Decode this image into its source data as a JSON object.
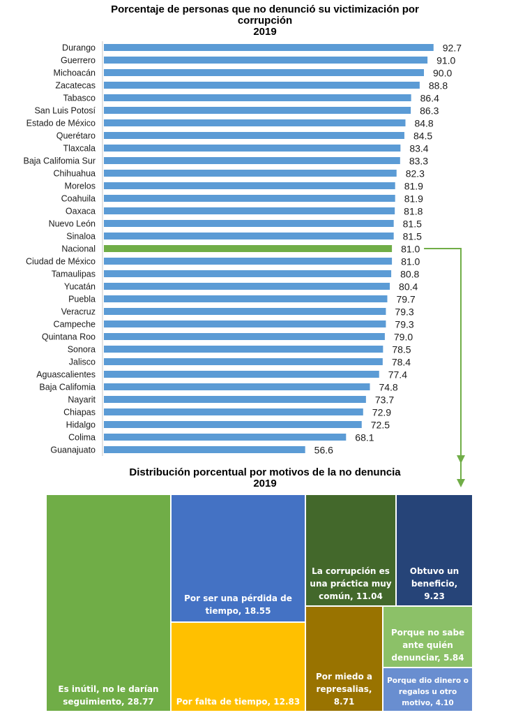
{
  "chart_data": [
    {
      "type": "bar",
      "orientation": "horizontal",
      "title": "Porcentaje de personas que no denunció su victimización por corrupción",
      "subtitle": "2019",
      "xlabel": "",
      "ylabel": "",
      "xlim": [
        0,
        100
      ],
      "grid": false,
      "categories": [
        "Durango",
        "Guerrero",
        "Michoacán",
        "Zacatecas",
        "Tabasco",
        "San Luis Potosí",
        "Estado de México",
        "Querétaro",
        "Tlaxcala",
        "Baja Califomia Sur",
        "Chihuahua",
        "Morelos",
        "Coahuila",
        "Oaxaca",
        "Nuevo León",
        "Sinaloa",
        "Nacional",
        "Ciudad de México",
        "Tamaulipas",
        "Yucatán",
        "Puebla",
        "Veracruz",
        "Campeche",
        "Quintana Roo",
        "Sonora",
        "Jalisco",
        "Aguascalientes",
        "Baja Califomia",
        "Nayarit",
        "Chiapas",
        "Hidalgo",
        "Colima",
        "Guanajuato"
      ],
      "values": [
        92.7,
        91.0,
        90.0,
        88.8,
        86.4,
        86.3,
        84.8,
        84.5,
        83.4,
        83.3,
        82.3,
        81.9,
        81.9,
        81.8,
        81.5,
        81.5,
        81.0,
        81.0,
        80.8,
        80.4,
        79.7,
        79.3,
        79.3,
        79.0,
        78.5,
        78.4,
        77.4,
        74.8,
        73.7,
        72.9,
        72.5,
        68.1,
        56.6
      ],
      "value_labels": [
        "92.7",
        "91.0",
        "90.0",
        "88.8",
        "86.4",
        "86.3",
        "84.8",
        "84.5",
        "83.4",
        "83.3",
        "82.3",
        "81.9",
        "81.9",
        "81.8",
        "81.5",
        "81.5",
        "81.0",
        "81.0",
        "80.8",
        "80.4",
        "79.7",
        "79.3",
        "79.3",
        "79.0",
        "78.5",
        "78.4",
        "77.4",
        "74.8",
        "73.7",
        "72.9",
        "72.5",
        "68.1",
        "56.6"
      ],
      "highlight_category": "Nacional",
      "colors": {
        "bar": "#5b9bd5",
        "highlight": "#70ad47",
        "connector": "#70ad47",
        "axis": "#d9d9d9"
      }
    },
    {
      "type": "treemap",
      "title": "Distribución porcentual por motivos de la no denuncia",
      "subtitle": "2019",
      "items": [
        {
          "label": "Es inútil, no le darían seguimiento, 28.77",
          "name": "Es inútil, no le darían seguimiento",
          "value": 28.77,
          "color": "#70ad47"
        },
        {
          "label": "Por ser una pérdida de tiempo, 18.55",
          "name": "Por ser una pérdida de tiempo",
          "value": 18.55,
          "color": "#4472c4"
        },
        {
          "label": "Por falta de tiempo, 12.83",
          "name": "Por falta de tiempo",
          "value": 12.83,
          "color": "#ffc000"
        },
        {
          "label": "La corrupción es una práctica muy común, 11.04",
          "name": "La corrupción es una práctica muy común",
          "value": 11.04,
          "color": "#43682b"
        },
        {
          "label": "Obtuvo un beneficio, 9.23",
          "name": "Obtuvo un beneficio",
          "value": 9.23,
          "color": "#264478"
        },
        {
          "label": "Por miedo a represalias, 8.71",
          "name": "Por miedo a represalias",
          "value": 8.71,
          "color": "#997300"
        },
        {
          "label": "Porque no sabe ante quién denunciar, 5.84",
          "name": "Porque no sabe ante quién denunciar",
          "value": 5.84,
          "color": "#8cc168"
        },
        {
          "label": "Porque dio dinero o regalos u otro motivo, 4.10",
          "name": "Porque dio dinero o regalos u otro motivo",
          "value": 4.1,
          "color": "#698ed0"
        }
      ]
    }
  ],
  "titles": {
    "bar_title_line1": "Porcentaje de personas que no denunció su victimización por",
    "bar_title_line2": "corrupción",
    "bar_year": "2019",
    "tree_title": "Distribución porcentual por motivos de la no denuncia",
    "tree_year": "2019"
  }
}
